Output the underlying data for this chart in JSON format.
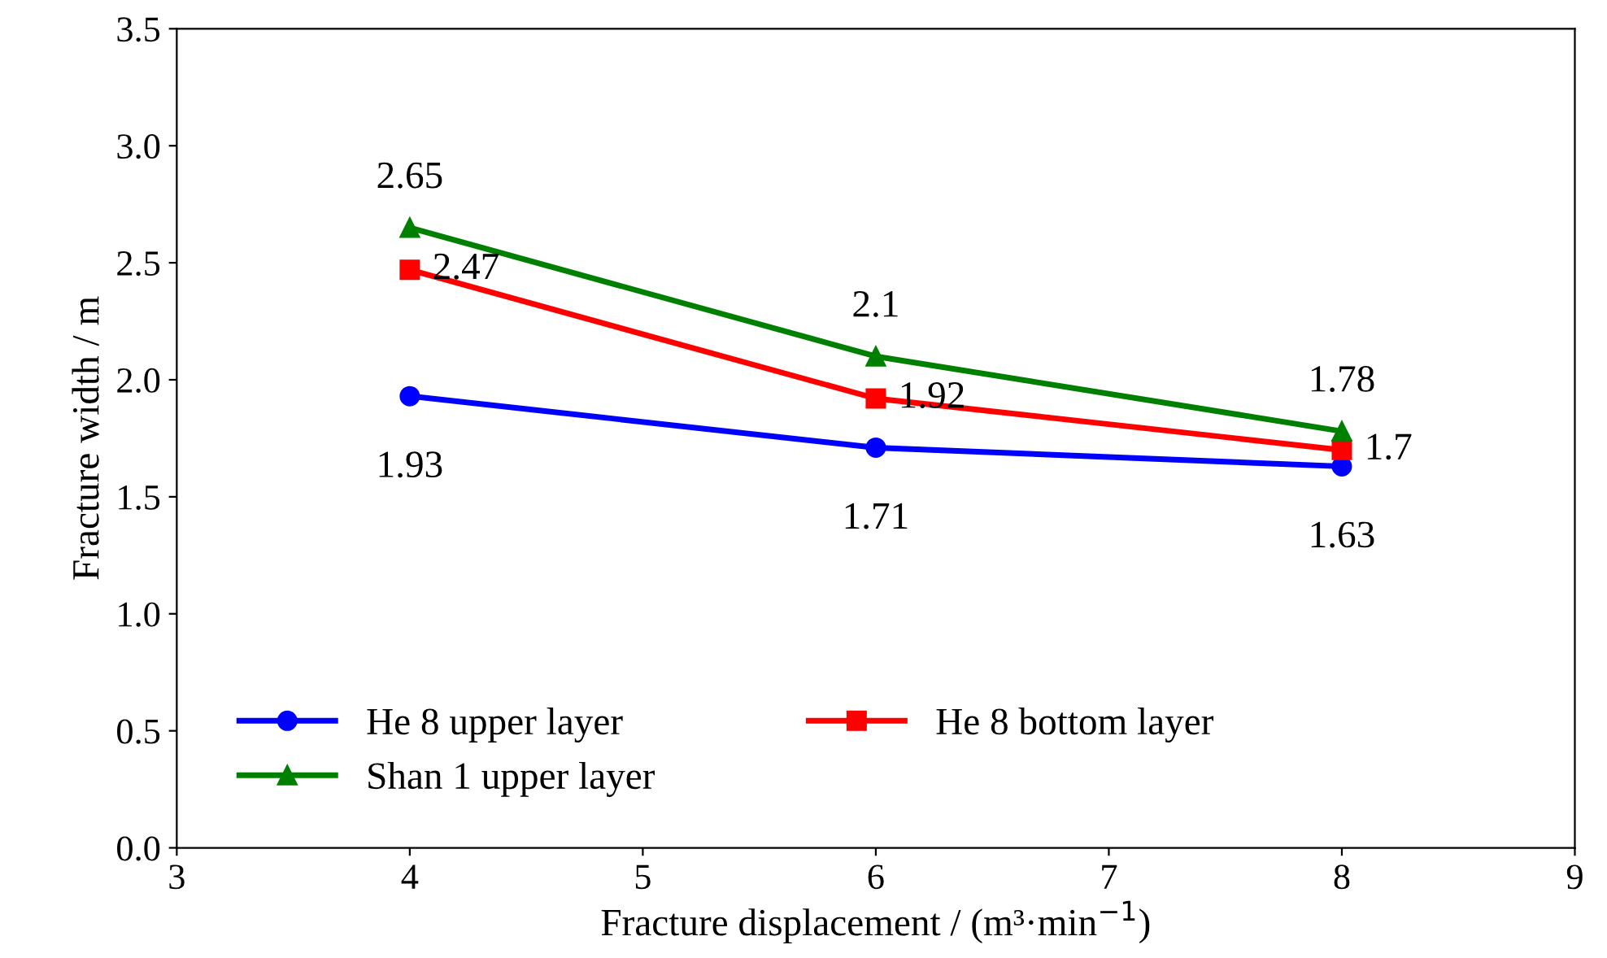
{
  "chart_data": {
    "type": "line",
    "xlabel": "Fracture displacement / (m³·min$^{−1}$)",
    "ylabel": "Fracture width / m",
    "x": [
      4,
      6,
      8
    ],
    "series": [
      {
        "name": "He 8 upper layer",
        "color": "#0000ff",
        "values": [
          1.93,
          1.71,
          1.63
        ],
        "marker": "circle"
      },
      {
        "name": "He 8 bottom layer",
        "color": "#ff0000",
        "values": [
          2.47,
          1.92,
          1.7
        ],
        "marker": "square"
      },
      {
        "name": "Shan 1 upper layer",
        "color": "#008000",
        "values": [
          2.65,
          2.1,
          1.78
        ],
        "marker": "triangle"
      }
    ],
    "xlim": [
      3,
      9
    ],
    "xticks": [
      3,
      4,
      5,
      6,
      7,
      8,
      9
    ],
    "ylim": [
      0,
      3.5
    ],
    "yticks": [
      {
        "value": 0,
        "label": "0.0"
      },
      {
        "value": 0.5,
        "label": "0.5"
      },
      {
        "value": 1,
        "label": "1.0"
      },
      {
        "value": 1.5,
        "label": "1.5"
      },
      {
        "value": 2,
        "label": "2.0"
      },
      {
        "value": 2.5,
        "label": "2.5"
      },
      {
        "value": 3,
        "label": "3.0"
      },
      {
        "value": 3.5,
        "label": "3.5"
      }
    ],
    "data_labels": true,
    "legend": "bottom left",
    "grid": false,
    "line_style": "solid"
  }
}
